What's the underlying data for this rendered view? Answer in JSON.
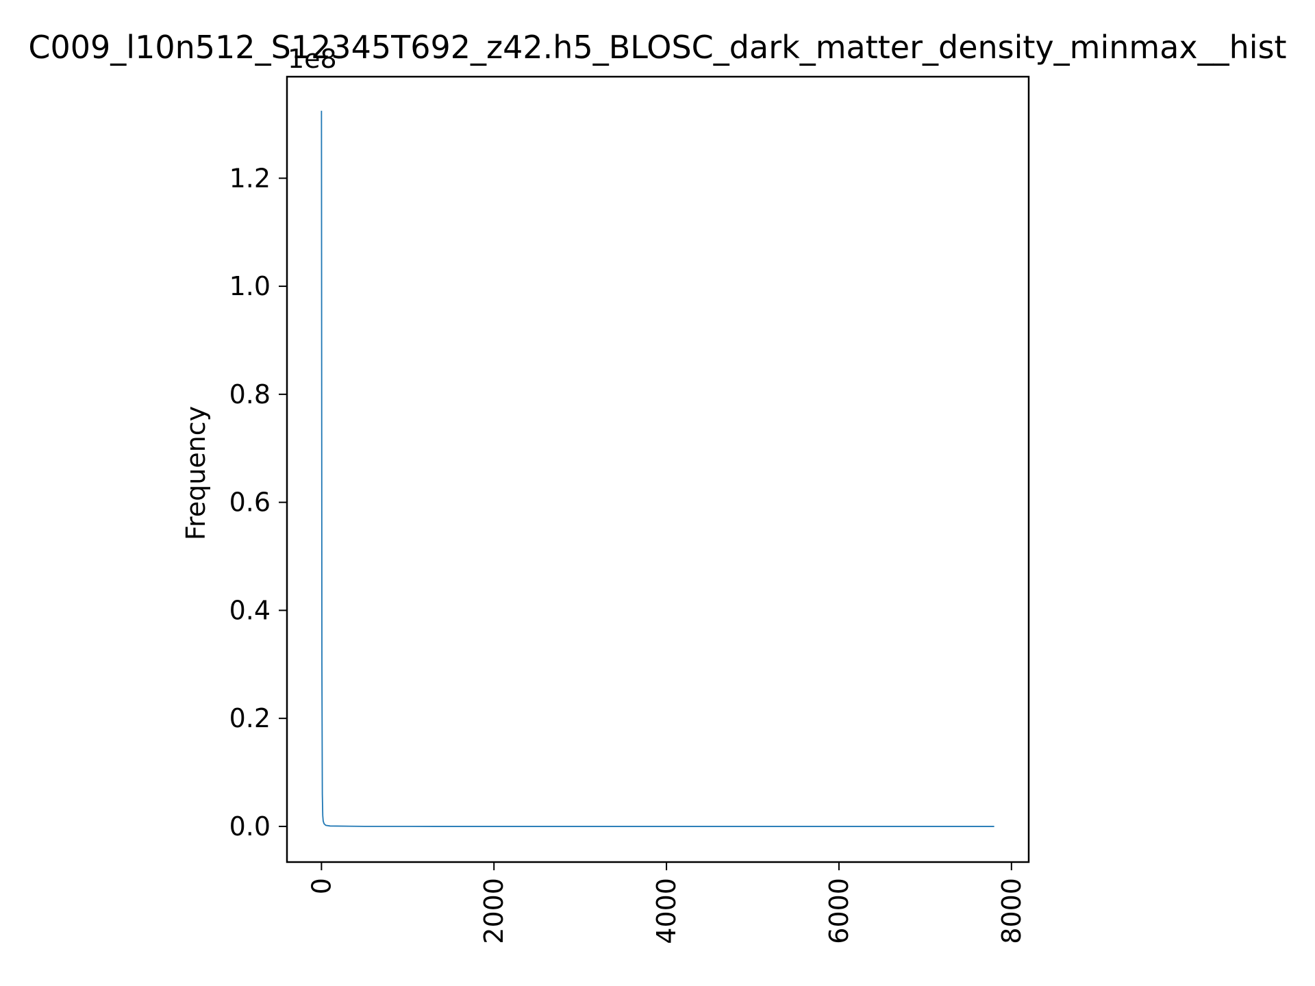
{
  "chart_data": {
    "type": "line",
    "title": "C009_l10n512_S12345T692_z42.h5_BLOSC_dark_matter_density_minmax__hist",
    "xlabel": "",
    "ylabel": "Frequency",
    "y_offset_label": "1e8",
    "xlim": [
      -400,
      8200
    ],
    "ylim": [
      -6600000,
      138800000
    ],
    "x_ticks": [
      {
        "value": 0,
        "label": "0"
      },
      {
        "value": 2000,
        "label": "2000"
      },
      {
        "value": 4000,
        "label": "4000"
      },
      {
        "value": 6000,
        "label": "6000"
      },
      {
        "value": 8000,
        "label": "8000"
      }
    ],
    "y_ticks": [
      {
        "value": 0,
        "label": "0.0"
      },
      {
        "value": 20000000,
        "label": "0.2"
      },
      {
        "value": 40000000,
        "label": "0.4"
      },
      {
        "value": 60000000,
        "label": "0.6"
      },
      {
        "value": 80000000,
        "label": "0.8"
      },
      {
        "value": 100000000,
        "label": "1.0"
      },
      {
        "value": 120000000,
        "label": "1.2"
      }
    ],
    "grid": false,
    "series": [
      {
        "color": "#1f77b4",
        "x": [
          0,
          5,
          10,
          15,
          20,
          30,
          50,
          100,
          500,
          1000,
          2000,
          3000,
          4000,
          5000,
          6000,
          7000,
          7800
        ],
        "y": [
          132500000,
          30000000,
          6000000,
          2000000,
          1000000,
          500000,
          200000,
          80000,
          10000,
          3000,
          800,
          300,
          150,
          80,
          40,
          20,
          10
        ]
      }
    ]
  }
}
